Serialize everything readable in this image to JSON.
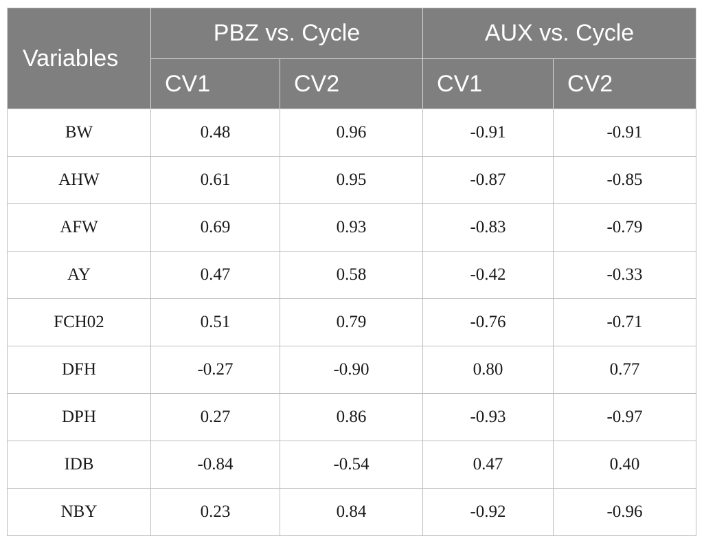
{
  "table": {
    "header": {
      "variables_label": "Variables",
      "groups": [
        "PBZ vs. Cycle",
        "AUX vs. Cycle"
      ],
      "subcolumns": [
        "CV1",
        "CV2",
        "CV1",
        "CV2"
      ]
    },
    "rows": [
      {
        "variable": "BW",
        "values": [
          "0.48",
          "0.96",
          "-0.91",
          "-0.91"
        ]
      },
      {
        "variable": "AHW",
        "values": [
          "0.61",
          "0.95",
          "-0.87",
          "-0.85"
        ]
      },
      {
        "variable": "AFW",
        "values": [
          "0.69",
          "0.93",
          "-0.83",
          "-0.79"
        ]
      },
      {
        "variable": "AY",
        "values": [
          "0.47",
          "0.58",
          "-0.42",
          "-0.33"
        ]
      },
      {
        "variable": "FCH02",
        "values": [
          "0.51",
          "0.79",
          "-0.76",
          "-0.71"
        ]
      },
      {
        "variable": "DFH",
        "values": [
          "-0.27",
          "-0.90",
          "0.80",
          "0.77"
        ]
      },
      {
        "variable": "DPH",
        "values": [
          "0.27",
          "0.86",
          "-0.93",
          "-0.97"
        ]
      },
      {
        "variable": "IDB",
        "values": [
          "-0.84",
          "-0.54",
          "0.47",
          "0.40"
        ]
      },
      {
        "variable": "NBY",
        "values": [
          "0.23",
          "0.84",
          "-0.92",
          "-0.96"
        ]
      }
    ]
  }
}
